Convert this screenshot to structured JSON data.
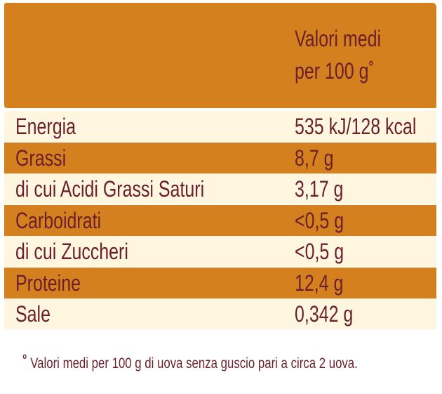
{
  "header": {
    "value_heading": [
      "Valori medi",
      "per 100 g"
    ],
    "marker": "°"
  },
  "table": {
    "rows": [
      [
        "Energia",
        "535 kJ/128 kcal"
      ],
      [
        "Grassi",
        "8,7 g"
      ],
      [
        "di cui Acidi Grassi Saturi",
        "3,17 g"
      ],
      [
        "Carboidrati",
        "<0,5 g"
      ],
      [
        "di cui Zuccheri",
        "<0,5 g"
      ],
      [
        "Proteine",
        "12,4 g"
      ],
      [
        "Sale",
        "0,342 g"
      ]
    ]
  },
  "footnote": {
    "marker": "°",
    "text": "Valori medi per 100 g di uova senza guscio pari a circa 2 uova."
  }
}
